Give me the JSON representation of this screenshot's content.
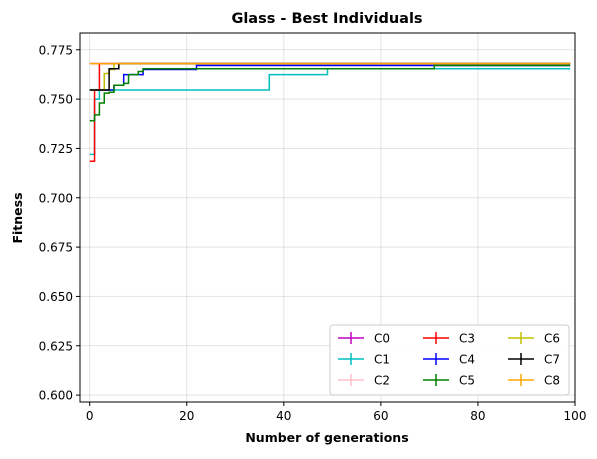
{
  "chart_data": {
    "type": "line",
    "title": "Glass - Best Individuals",
    "xlabel": "Number of generations",
    "ylabel": "Fitness",
    "xlim": [
      -2,
      100
    ],
    "ylim": [
      0.5965,
      0.7835
    ],
    "xticks": [
      0,
      20,
      40,
      60,
      80,
      100
    ],
    "yticks": [
      0.6,
      0.625,
      0.65,
      0.675,
      0.7,
      0.725,
      0.75,
      0.775
    ],
    "xtick_labels": [
      "0",
      "20",
      "40",
      "60",
      "80",
      "100"
    ],
    "ytick_labels": [
      "0.600",
      "0.625",
      "0.650",
      "0.675",
      "0.700",
      "0.725",
      "0.750",
      "0.775"
    ],
    "grid": true,
    "legend_position": "bottom-right",
    "legend_columns": 3,
    "series": [
      {
        "name": "C0",
        "color": "#bf00bf",
        "points": [
          [
            0,
            0.768
          ],
          [
            99,
            0.768
          ]
        ]
      },
      {
        "name": "C1",
        "color": "#00bfbf",
        "points": [
          [
            0,
            0.722
          ],
          [
            1,
            0.75
          ],
          [
            2,
            0.7546
          ],
          [
            36,
            0.7546
          ],
          [
            37,
            0.7624
          ],
          [
            48,
            0.7624
          ],
          [
            49,
            0.7654
          ],
          [
            99,
            0.7654
          ]
        ]
      },
      {
        "name": "C2",
        "color": "#ffc0cb",
        "points": [
          [
            0,
            0.768
          ],
          [
            99,
            0.768
          ]
        ]
      },
      {
        "name": "C3",
        "color": "#ff0000",
        "points": [
          [
            0,
            0.7185
          ],
          [
            1,
            0.7546
          ],
          [
            2,
            0.768
          ],
          [
            99,
            0.768
          ]
        ]
      },
      {
        "name": "C4",
        "color": "#0000ff",
        "points": [
          [
            0,
            0.7546
          ],
          [
            4,
            0.7546
          ],
          [
            5,
            0.757
          ],
          [
            6,
            0.757
          ],
          [
            7,
            0.7624
          ],
          [
            9,
            0.7624
          ],
          [
            10,
            0.7624
          ],
          [
            11,
            0.765
          ],
          [
            21,
            0.765
          ],
          [
            22,
            0.767
          ],
          [
            99,
            0.767
          ]
        ]
      },
      {
        "name": "C5",
        "color": "#008000",
        "points": [
          [
            0,
            0.739
          ],
          [
            1,
            0.742
          ],
          [
            2,
            0.748
          ],
          [
            3,
            0.753
          ],
          [
            4,
            0.7535
          ],
          [
            5,
            0.757
          ],
          [
            7,
            0.758
          ],
          [
            8,
            0.7624
          ],
          [
            10,
            0.764
          ],
          [
            11,
            0.7654
          ],
          [
            70,
            0.7654
          ],
          [
            71,
            0.767
          ],
          [
            99,
            0.767
          ]
        ]
      },
      {
        "name": "C6",
        "color": "#bfbf00",
        "points": [
          [
            0,
            0.7546
          ],
          [
            2,
            0.7546
          ],
          [
            3,
            0.763
          ],
          [
            4,
            0.765
          ],
          [
            5,
            0.768
          ],
          [
            99,
            0.768
          ]
        ]
      },
      {
        "name": "C7",
        "color": "#000000",
        "points": [
          [
            0,
            0.7546
          ],
          [
            3,
            0.7546
          ],
          [
            4,
            0.7654
          ],
          [
            5,
            0.7654
          ],
          [
            6,
            0.768
          ],
          [
            99,
            0.768
          ]
        ]
      },
      {
        "name": "C8",
        "color": "#ffa500",
        "points": [
          [
            0,
            0.768
          ],
          [
            99,
            0.768
          ]
        ]
      }
    ]
  }
}
